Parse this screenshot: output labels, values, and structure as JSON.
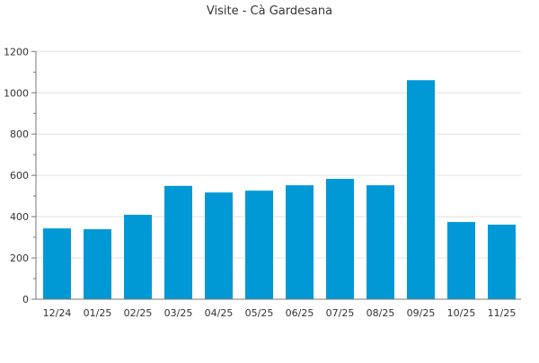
{
  "chart_data": {
    "type": "bar",
    "title": "Visite - Cà Gardesana",
    "categories": [
      "12/24",
      "01/25",
      "02/25",
      "03/25",
      "04/25",
      "05/25",
      "06/25",
      "07/25",
      "08/25",
      "09/25",
      "10/25",
      "11/25"
    ],
    "values": [
      343,
      339,
      409,
      549,
      517,
      526,
      552,
      583,
      552,
      1061,
      374,
      361
    ],
    "xlabel": "",
    "ylabel": "",
    "ylim": [
      0,
      1200
    ],
    "yticks": [
      "0",
      "200",
      "400",
      "600",
      "800",
      "1000",
      "1200"
    ],
    "grid": true,
    "legend": "none",
    "bar_color": "#0099d6"
  }
}
